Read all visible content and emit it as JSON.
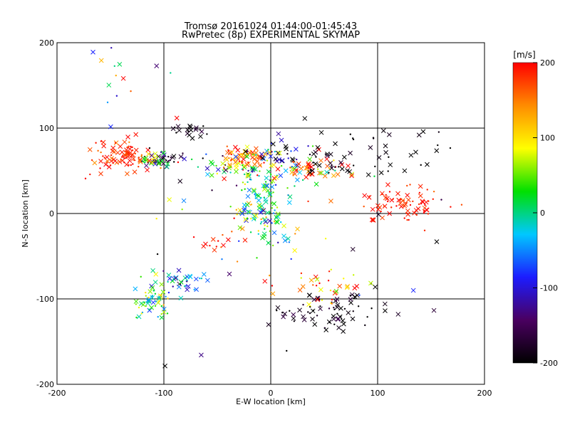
{
  "chart_data": {
    "type": "scatter",
    "title": "Tromsø 20161024 01:44:00-01:45:43",
    "subtitle": "RwPretec (8p) EXPERIMENTAL SKYMAP",
    "xlabel": "E-W location [km]",
    "ylabel": "N-S location [km]",
    "xlim": [
      -200,
      200
    ],
    "ylim": [
      -200,
      200
    ],
    "xticks": [
      -200,
      -100,
      0,
      100,
      200
    ],
    "yticks": [
      -200,
      -100,
      0,
      100,
      200
    ],
    "xtick_labels": [
      "-200",
      "-100",
      "0",
      "100",
      "200"
    ],
    "ytick_labels": [
      "-200",
      "-100",
      "0",
      "100",
      "200"
    ],
    "grid": true,
    "marker_types": [
      "cross",
      "dot"
    ],
    "colorbar": {
      "label": "[m/s]",
      "range": [
        -200,
        200
      ],
      "ticks": [
        200,
        100,
        0,
        -100,
        -200
      ],
      "tick_labels": [
        "200",
        "100",
        "0",
        "-100",
        "-200"
      ],
      "colors": [
        "#000000",
        "#4a0060",
        "#1c1cff",
        "#00c8ff",
        "#00e000",
        "#ffff00",
        "#ff8c00",
        "#ff0000"
      ]
    },
    "clusters": [
      {
        "x": -140,
        "y": 68,
        "sx": 14,
        "sy": 10,
        "n": 90,
        "v": 180,
        "sv": 20
      },
      {
        "x": -100,
        "y": 65,
        "sx": 10,
        "sy": 6,
        "n": 35,
        "v": -170,
        "sv": 40
      },
      {
        "x": -110,
        "y": 62,
        "sx": 6,
        "sy": 4,
        "n": 25,
        "v": 40,
        "sv": 60
      },
      {
        "x": -75,
        "y": 97,
        "sx": 10,
        "sy": 5,
        "n": 20,
        "v": -190,
        "sv": 15
      },
      {
        "x": -25,
        "y": 66,
        "sx": 12,
        "sy": 6,
        "n": 55,
        "v": 170,
        "sv": 40
      },
      {
        "x": -40,
        "y": 55,
        "sx": 14,
        "sy": 8,
        "n": 40,
        "v": 0,
        "sv": 120
      },
      {
        "x": 5,
        "y": 70,
        "sx": 15,
        "sy": 12,
        "n": 40,
        "v": -120,
        "sv": 90
      },
      {
        "x": 35,
        "y": 52,
        "sx": 20,
        "sy": 8,
        "n": 60,
        "v": 150,
        "sv": 70
      },
      {
        "x": 55,
        "y": 60,
        "sx": 10,
        "sy": 6,
        "n": 25,
        "v": -190,
        "sv": 20
      },
      {
        "x": -5,
        "y": 10,
        "sx": 14,
        "sy": 25,
        "n": 150,
        "v": 10,
        "sv": 60
      },
      {
        "x": 125,
        "y": 10,
        "sx": 20,
        "sy": 12,
        "n": 80,
        "v": 190,
        "sv": 15
      },
      {
        "x": 110,
        "y": 75,
        "sx": 35,
        "sy": 20,
        "n": 35,
        "v": -200,
        "sv": 10
      },
      {
        "x": -110,
        "y": -100,
        "sx": 10,
        "sy": 12,
        "n": 60,
        "v": 20,
        "sv": 50
      },
      {
        "x": -80,
        "y": -78,
        "sx": 15,
        "sy": 8,
        "n": 35,
        "v": -50,
        "sv": 60
      },
      {
        "x": 55,
        "y": -115,
        "sx": 30,
        "sy": 10,
        "n": 75,
        "v": -190,
        "sv": 20
      },
      {
        "x": 50,
        "y": -85,
        "sx": 25,
        "sy": 10,
        "n": 30,
        "v": 150,
        "sv": 60
      },
      {
        "x": -50,
        "y": -40,
        "sx": 15,
        "sy": 10,
        "n": 15,
        "v": 200,
        "sv": 30
      },
      {
        "x": 0,
        "y": -30,
        "sx": 70,
        "sy": 60,
        "n": 40,
        "v": 0,
        "sv": 150
      },
      {
        "x": -130,
        "y": 150,
        "sx": 20,
        "sy": 25,
        "n": 15,
        "v": 0,
        "sv": 150
      }
    ]
  }
}
